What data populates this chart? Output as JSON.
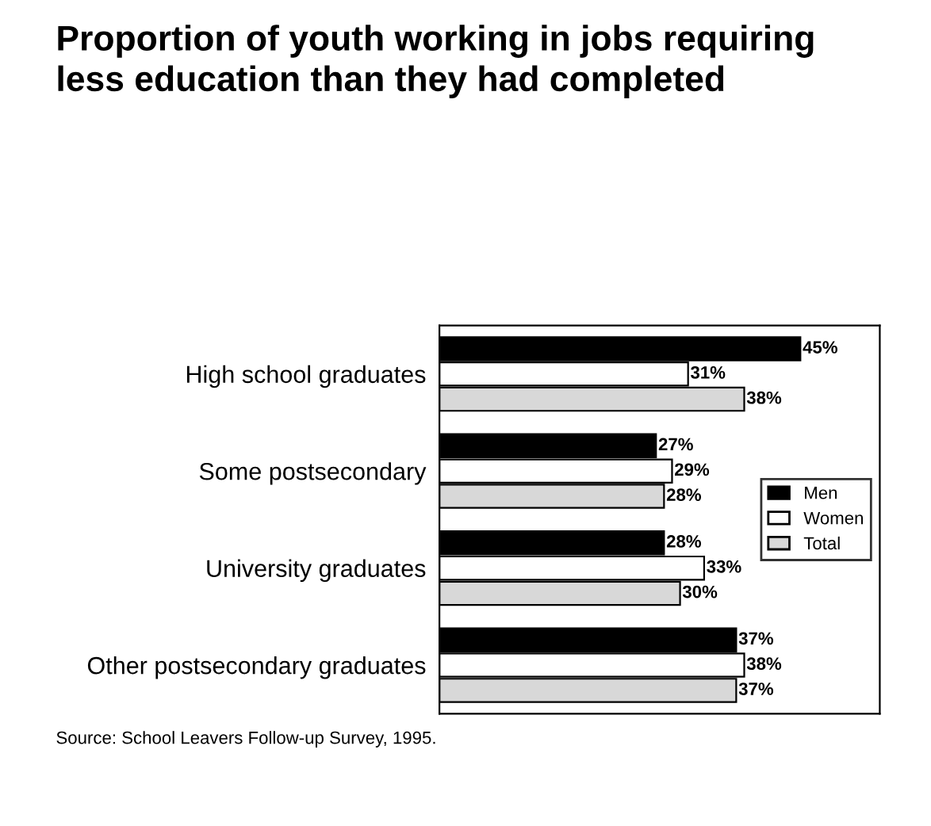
{
  "chart_data": {
    "type": "bar",
    "orientation": "horizontal",
    "title": "Proportion of youth working in jobs requiring\nless education than they had completed",
    "categories": [
      "High school graduates",
      "Some postsecondary",
      "University graduates",
      "Other postsecondary graduates"
    ],
    "series": [
      {
        "name": "Men",
        "color": "#000000",
        "values": [
          45,
          27,
          28,
          37
        ],
        "value_labels": [
          "45%",
          "27%",
          "28%",
          "37%"
        ]
      },
      {
        "name": "Women",
        "color": "#ffffff",
        "values": [
          31,
          29,
          33,
          38
        ],
        "value_labels": [
          "31%",
          "29%",
          "33%",
          "38%"
        ]
      },
      {
        "name": "Total",
        "color": "#d8d8d8",
        "values": [
          38,
          28,
          30,
          37
        ],
        "value_labels": [
          "38%",
          "28%",
          "30%",
          "37%"
        ]
      }
    ],
    "legend": "right",
    "grid": false,
    "tick_labels": "y",
    "annotations": [
      "Source: School Leavers Follow-up Survey, 1995."
    ]
  }
}
